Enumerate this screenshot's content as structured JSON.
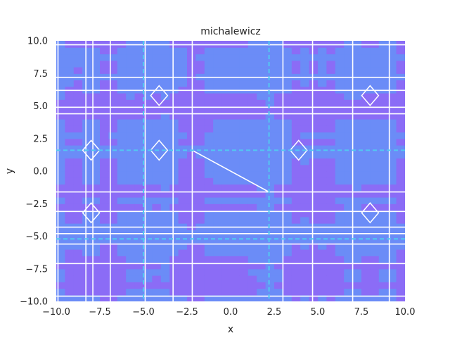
{
  "chart_data": {
    "type": "heatmap",
    "title": "michalewicz",
    "xlabel": "x",
    "ylabel": "y",
    "xlim": [
      -10,
      10
    ],
    "ylim": [
      -10,
      10
    ],
    "xticks": [
      -10.0,
      -7.5,
      -5.0,
      -2.5,
      0.0,
      2.5,
      5.0,
      7.5,
      10.0
    ],
    "yticks": [
      -10.0,
      -7.5,
      -5.0,
      -2.5,
      0.0,
      2.5,
      5.0,
      7.5,
      10.0
    ],
    "xtick_labels": [
      "−10.0",
      "−7.5",
      "−5.0",
      "−2.5",
      "0.0",
      "2.5",
      "5.0",
      "7.5",
      "10.0"
    ],
    "ytick_labels": [
      "−10.0",
      "−7.5",
      "−5.0",
      "−2.5",
      "0.0",
      "2.5",
      "5.0",
      "7.5",
      "10.0"
    ],
    "colors": {
      "low": "#8b6cf6",
      "high": "#6b8cf7",
      "contour": "#ffffff",
      "dashed": "#53c8f0"
    },
    "solid_contours_x": [
      -9.9,
      -8.3,
      -7.9,
      -6.9,
      -4.9,
      -3.3,
      -2.2,
      3.0,
      4.7,
      7.0,
      9.1
    ],
    "solid_contours_y": [
      9.7,
      7.2,
      6.2,
      4.9,
      4.4,
      -1.6,
      -3.1,
      -4.3,
      -4.8,
      -5.6,
      -7.1,
      -9.6
    ],
    "dashed_contours_x": [
      -5.0,
      2.2
    ],
    "dashed_contours_y": [
      1.6,
      -5.2
    ]
  }
}
